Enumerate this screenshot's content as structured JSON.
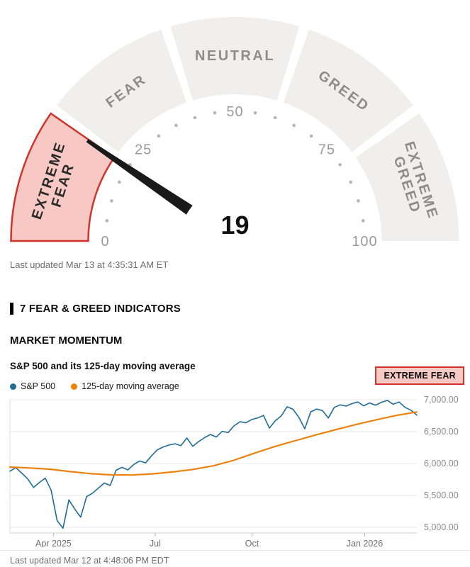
{
  "gauge": {
    "value": "19",
    "value_num": 19,
    "max": 100,
    "minor_step": 5,
    "tick_values": [
      0,
      25,
      50,
      75,
      100
    ],
    "segments": [
      {
        "lines": [
          "EXTREME",
          "FEAR"
        ],
        "active": true
      },
      {
        "lines": [
          "FEAR"
        ],
        "active": false
      },
      {
        "lines": [
          "NEUTRAL"
        ],
        "active": false
      },
      {
        "lines": [
          "GREED"
        ],
        "active": false
      },
      {
        "lines": [
          "EXTREME",
          "GREED"
        ],
        "active": false
      }
    ],
    "colors": {
      "segment": "#f1efee",
      "active_fill": "#f8c9c4",
      "active_stroke": "#cf342c",
      "needle": "#1a1a1a",
      "label": "#8d8d8d",
      "active_label": "#2b2b2b",
      "tick": "#9a9a9a",
      "dot": "#b5b5b5"
    },
    "last_updated": "Last updated Mar 13 at 4:35:31 AM ET"
  },
  "indicators": {
    "header": "7 FEAR & GREED INDICATORS"
  },
  "momentum": {
    "title": "MARKET MOMENTUM",
    "subtitle": "S&P 500 and its 125-day moving average",
    "badge": "EXTREME FEAR",
    "badge_colors": {
      "bg": "#f6c9c4",
      "border": "#cf342c",
      "text": "#0d0d0d"
    },
    "last_updated": "Last updated Mar 12 at 4:48:06 PM EDT"
  },
  "chart_data": {
    "type": "line",
    "title": "S&P 500 and its 125-day moving average",
    "grid": true,
    "legend_position": "top-left",
    "ylim": [
      5000,
      7000
    ],
    "x_ticks": [
      {
        "label": "Apr 2025",
        "f": 0.107
      },
      {
        "label": "Jul",
        "f": 0.357
      },
      {
        "label": "Oct",
        "f": 0.595
      },
      {
        "label": "Jan 2026",
        "f": 0.872
      }
    ],
    "y_ticks": [
      {
        "label": "7,000.00",
        "value": 7000
      },
      {
        "label": "6,500.00",
        "value": 6500
      },
      {
        "label": "6,000.00",
        "value": 6000
      },
      {
        "label": "5,500.00",
        "value": 5500
      },
      {
        "label": "5,000.00",
        "value": 5000
      }
    ],
    "series": [
      {
        "name": "S&P 500",
        "color": "#1f6c94",
        "width": 1.6,
        "values": [
          5880,
          5935,
          5850,
          5760,
          5625,
          5705,
          5770,
          5580,
          5105,
          4985,
          5430,
          5285,
          5160,
          5480,
          5535,
          5615,
          5695,
          5655,
          5895,
          5940,
          5900,
          5985,
          6040,
          6010,
          6120,
          6215,
          6260,
          6290,
          6310,
          6280,
          6400,
          6270,
          6345,
          6405,
          6455,
          6415,
          6505,
          6485,
          6590,
          6655,
          6640,
          6690,
          6715,
          6755,
          6555,
          6670,
          6745,
          6890,
          6850,
          6725,
          6545,
          6810,
          6855,
          6830,
          6715,
          6880,
          6920,
          6900,
          6940,
          6965,
          6905,
          6950,
          6915,
          6960,
          6990,
          6930,
          6965,
          6880,
          6835,
          6760
        ]
      },
      {
        "name": "125-day moving average",
        "color": "#ec820d",
        "width": 2.2,
        "values": [
          5945,
          5930,
          5910,
          5872,
          5840,
          5822,
          5820,
          5838,
          5868,
          5908,
          5965,
          6050,
          6160,
          6265,
          6355,
          6445,
          6530,
          6610,
          6685,
          6755,
          6808
        ]
      }
    ]
  }
}
